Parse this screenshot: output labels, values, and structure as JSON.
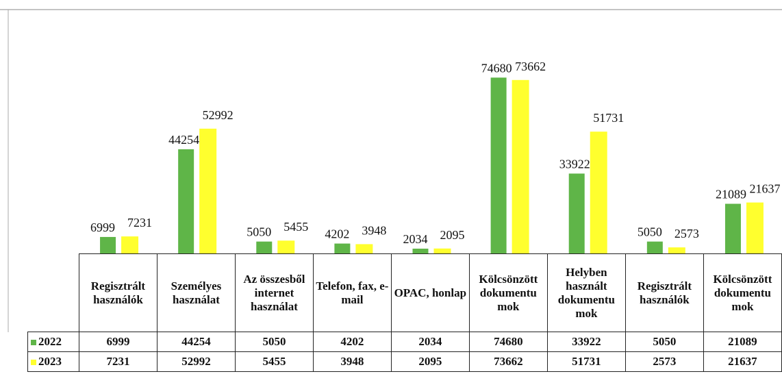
{
  "chart_data": {
    "type": "bar",
    "categories": [
      "Regisztrált használók",
      "Személyes használat",
      "Az összesből internet használat",
      "Telefon, fax, e-mail",
      "OPAC, honlap",
      "Kölcsönzött dokumentu mok",
      "Helyben használt dokumentu mok",
      "Regisztrált használók",
      "Kölcsönzött dokumentu mok"
    ],
    "series": [
      {
        "name": "2022",
        "color": "#5fb548",
        "values": [
          6999,
          44254,
          5050,
          4202,
          2034,
          74680,
          33922,
          5050,
          21089
        ]
      },
      {
        "name": "2023",
        "color": "#ffff2e",
        "values": [
          7231,
          52992,
          5455,
          3948,
          2095,
          73662,
          51731,
          2573,
          21637
        ]
      }
    ],
    "ylim": [
      0,
      80000
    ]
  }
}
